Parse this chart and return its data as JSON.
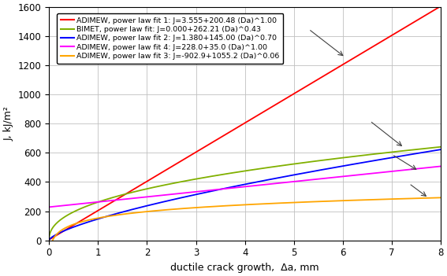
{
  "title": "",
  "xlabel": "ductile crack growth,  Δa, mm",
  "ylabel": "J, kJ/m²",
  "xlim": [
    0.0,
    8.0
  ],
  "ylim": [
    0,
    1600
  ],
  "xticks": [
    0.0,
    1.0,
    2.0,
    3.0,
    4.0,
    5.0,
    6.0,
    7.0,
    8.0
  ],
  "yticks": [
    0,
    200,
    400,
    600,
    800,
    1000,
    1200,
    1400,
    1600
  ],
  "curves": [
    {
      "label": "ADIMEW, power law fit 1: J=3.555+200.48 (Da)^1.00",
      "color": "#ff0000",
      "C0": 3.555,
      "C1": 200.48,
      "n": 1.0
    },
    {
      "label": "BIMET, power law fit: J=0.000+262.21 (Da)^0.43",
      "color": "#80b000",
      "C0": 0.0,
      "C1": 262.21,
      "n": 0.43
    },
    {
      "label": "ADIMEW, power law fit 2: J=1.380+145.00 (Da)^0.70",
      "color": "#0000ff",
      "C0": 1.38,
      "C1": 145.0,
      "n": 0.7
    },
    {
      "label": "ADIMEW, power law fit 4: J=228.0+35.0 (Da)^1.00",
      "color": "#ff00ff",
      "C0": 228.0,
      "C1": 35.0,
      "n": 1.0
    },
    {
      "label": "ADIMEW, power law fit 3: J=-902.9+1055.2 (Da)^0.06",
      "color": "#ffa500",
      "C0": -902.9,
      "C1": 1055.2,
      "n": 0.06
    }
  ],
  "arrow_lines": [
    {
      "x1": 5.3,
      "y1": 1450,
      "x2": 6.05,
      "y2": 1255
    },
    {
      "x1": 6.55,
      "y1": 820,
      "x2": 7.25,
      "y2": 635
    },
    {
      "x1": 7.0,
      "y1": 590,
      "x2": 7.55,
      "y2": 475
    },
    {
      "x1": 7.35,
      "y1": 390,
      "x2": 7.75,
      "y2": 290
    }
  ],
  "background_color": "#ffffff",
  "grid_color": "#c0c0c0",
  "legend_fontsize": 6.8,
  "axis_fontsize": 9,
  "tick_fontsize": 8.5
}
